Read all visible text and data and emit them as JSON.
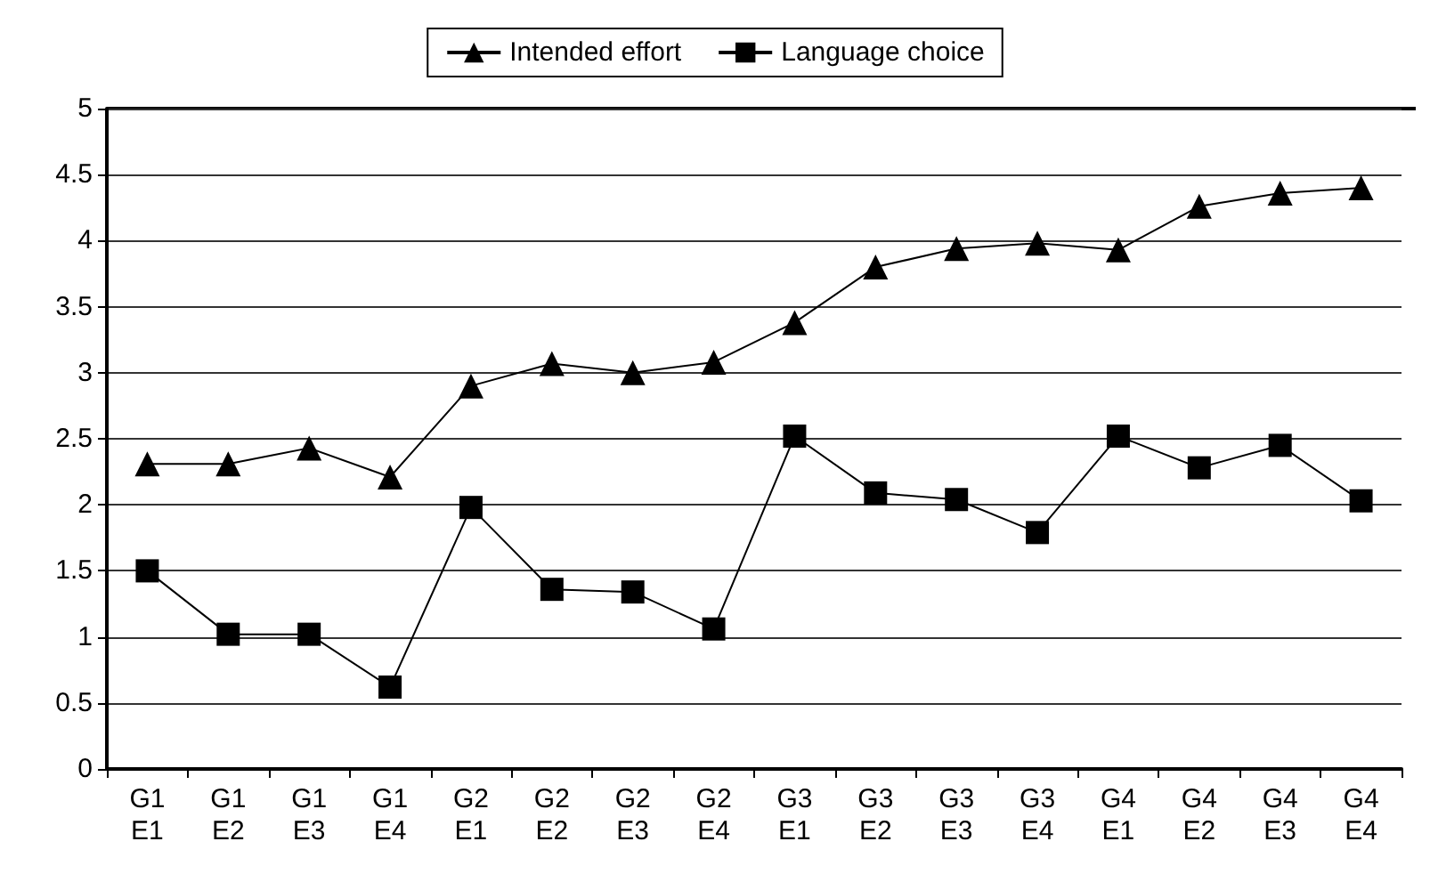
{
  "chart_data": {
    "type": "line",
    "categories": [
      "G1\nE1",
      "G1\nE2",
      "G1\nE3",
      "G1\nE4",
      "G2\nE1",
      "G2\nE2",
      "G2\nE3",
      "G2\nE4",
      "G3\nE1",
      "G3\nE2",
      "G3\nE3",
      "G3\nE4",
      "G4\nE1",
      "G4\nE2",
      "G4\nE3",
      "G4\nE4"
    ],
    "series": [
      {
        "name": "Intended effort",
        "color": "#000000",
        "marker": "triangle",
        "values": [
          2.31,
          2.31,
          2.43,
          2.21,
          2.9,
          3.07,
          3.0,
          3.08,
          3.38,
          3.8,
          3.94,
          3.98,
          3.93,
          4.26,
          4.36,
          4.4
        ]
      },
      {
        "name": "Language choice",
        "color": "#000000",
        "marker": "square",
        "values": [
          1.5,
          1.02,
          1.02,
          0.62,
          1.98,
          1.36,
          1.34,
          1.06,
          2.52,
          2.09,
          2.04,
          1.79,
          2.52,
          2.28,
          2.45,
          2.03
        ]
      }
    ],
    "ylim": [
      0,
      5
    ],
    "yticks": [
      0,
      0.5,
      1,
      1.5,
      2,
      2.5,
      3,
      3.5,
      4,
      4.5,
      5
    ],
    "grid": "y",
    "legend": "top",
    "line_style": "solid"
  }
}
